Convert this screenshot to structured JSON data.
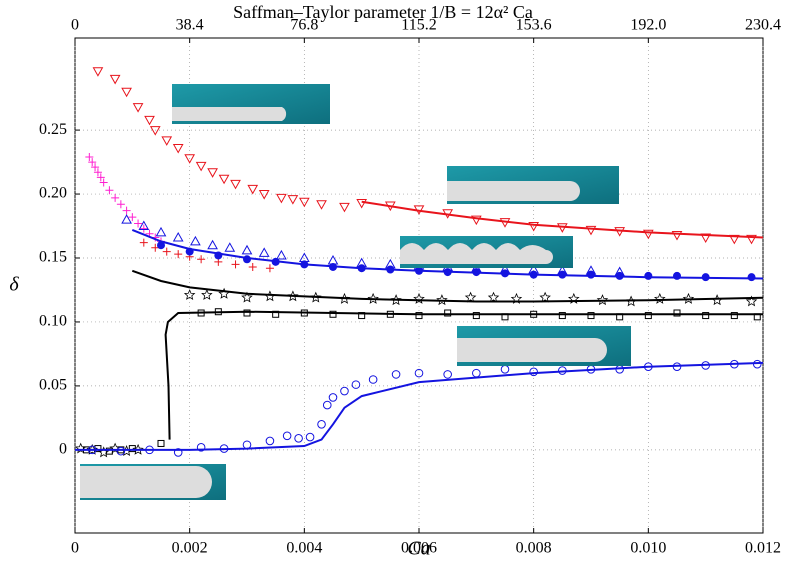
{
  "chart_data": {
    "type": "scatter",
    "title": "Saffman–Taylor parameter 1/B = 12α² Ca",
    "xlabel": "Ca",
    "ylabel": "δ",
    "xlim": [
      0,
      0.012
    ],
    "ylim": [
      -0.065,
      0.322
    ],
    "x2lim": [
      0,
      230.4
    ],
    "xticks": [
      0,
      0.002,
      0.004,
      0.006,
      0.008,
      {
        "value": 0.01,
        "label": "0.010"
      },
      0.012
    ],
    "x2ticks": [
      0,
      38.4,
      76.8,
      115.2,
      153.6,
      {
        "value": 192,
        "label": "192.0"
      },
      230.4
    ],
    "yticks": [
      0,
      0.05,
      {
        "value": 0.1,
        "label": "0.10"
      },
      0.15,
      {
        "value": 0.2,
        "label": "0.20"
      },
      0.25
    ],
    "grid": true,
    "series": [
      {
        "marker": "tri-down",
        "color": "#e8141c",
        "x": [
          0.0004,
          0.0007,
          0.0009,
          0.0011,
          0.0013,
          0.0014,
          0.0016,
          0.0018,
          0.002,
          0.0022,
          0.0024,
          0.0026,
          0.0028,
          0.0031,
          0.0033,
          0.0036,
          0.0038,
          0.004,
          0.0043,
          0.0047,
          0.005,
          0.0055,
          0.006,
          0.0065,
          0.007,
          0.0075,
          0.008,
          0.0085,
          0.009,
          0.0095,
          0.01,
          0.0105,
          0.011,
          0.0115,
          0.0118
        ],
        "values": [
          0.296,
          0.29,
          0.28,
          0.268,
          0.258,
          0.25,
          0.242,
          0.236,
          0.228,
          0.222,
          0.217,
          0.212,
          0.208,
          0.204,
          0.2,
          0.197,
          0.196,
          0.194,
          0.192,
          0.19,
          0.193,
          0.191,
          0.188,
          0.185,
          0.18,
          0.178,
          0.175,
          0.174,
          0.172,
          0.171,
          0.169,
          0.168,
          0.166,
          0.165,
          0.165
        ]
      },
      {
        "marker": "line",
        "color": "#e8141c",
        "x": [
          0.005,
          0.006,
          0.007,
          0.008,
          0.009,
          0.01,
          0.011,
          0.012
        ],
        "values": [
          0.194,
          0.187,
          0.181,
          0.176,
          0.173,
          0.17,
          0.168,
          0.166
        ]
      },
      {
        "marker": "plus",
        "color": "#ff1fd0",
        "x": [
          0.00025,
          0.0003,
          0.00035,
          0.0004,
          0.00045,
          0.0005,
          0.0006,
          0.0007,
          0.0008,
          0.0009,
          0.001,
          0.0011,
          0.0012,
          0.0013,
          0.0014,
          0.0015
        ],
        "values": [
          0.229,
          0.225,
          0.221,
          0.217,
          0.213,
          0.209,
          0.203,
          0.197,
          0.192,
          0.187,
          0.182,
          0.177,
          0.173,
          0.169,
          0.166,
          0.163
        ]
      },
      {
        "marker": "plus",
        "color": "#e8141c",
        "x": [
          0.0012,
          0.0014,
          0.0016,
          0.0018,
          0.002,
          0.0022,
          0.0025,
          0.0028,
          0.0031,
          0.0034
        ],
        "values": [
          0.162,
          0.158,
          0.155,
          0.153,
          0.151,
          0.149,
          0.147,
          0.145,
          0.143,
          0.142
        ]
      },
      {
        "marker": "tri-up",
        "color": "#1414e0",
        "x": [
          0.0009,
          0.0012,
          0.0015,
          0.0018,
          0.0021,
          0.0024,
          0.0027,
          0.003,
          0.0033,
          0.0036,
          0.004,
          0.0045,
          0.005,
          0.0055,
          0.006,
          0.0065,
          0.007,
          0.0075,
          0.008,
          0.0085,
          0.009,
          0.0095
        ],
        "values": [
          0.18,
          0.175,
          0.17,
          0.166,
          0.163,
          0.16,
          0.158,
          0.156,
          0.154,
          0.152,
          0.15,
          0.148,
          0.146,
          0.145,
          0.144,
          0.143,
          0.142,
          0.141,
          0.141,
          0.14,
          0.14,
          0.139
        ]
      },
      {
        "marker": "circle-filled",
        "color": "#1414e0",
        "x": [
          0.0015,
          0.002,
          0.0025,
          0.003,
          0.0035,
          0.004,
          0.0045,
          0.005,
          0.0055,
          0.006,
          0.0065,
          0.007,
          0.0075,
          0.008,
          0.0085,
          0.009,
          0.0095,
          0.01,
          0.0105,
          0.011,
          0.0118
        ],
        "values": [
          0.16,
          0.155,
          0.152,
          0.149,
          0.147,
          0.145,
          0.143,
          0.142,
          0.141,
          0.14,
          0.139,
          0.139,
          0.138,
          0.137,
          0.137,
          0.137,
          0.136,
          0.136,
          0.136,
          0.135,
          0.135
        ]
      },
      {
        "marker": "line",
        "color": "#1414e0",
        "x": [
          0.001,
          0.0015,
          0.002,
          0.003,
          0.004,
          0.005,
          0.006,
          0.008,
          0.01,
          0.012
        ],
        "values": [
          0.172,
          0.163,
          0.157,
          0.15,
          0.145,
          0.142,
          0.14,
          0.137,
          0.135,
          0.134
        ]
      },
      {
        "marker": "star",
        "color": "#000000",
        "x": [
          0.0001,
          0.0003,
          0.0005,
          0.0007,
          0.0009,
          0.0011,
          0.002,
          0.0023,
          0.0026,
          0.003,
          0.0034,
          0.0038,
          0.0042,
          0.0047,
          0.0052,
          0.0056,
          0.006,
          0.0064,
          0.0069,
          0.0073,
          0.0077,
          0.0082,
          0.0087,
          0.0092,
          0.0097,
          0.0102,
          0.0107,
          0.0112,
          0.0118
        ],
        "values": [
          0.001,
          0,
          -0.002,
          0.001,
          -0.001,
          0,
          0.121,
          0.121,
          0.122,
          0.119,
          0.12,
          0.12,
          0.119,
          0.118,
          0.118,
          0.117,
          0.118,
          0.117,
          0.119,
          0.119,
          0.118,
          0.119,
          0.118,
          0.117,
          0.116,
          0.118,
          0.118,
          0.117,
          0.116
        ]
      },
      {
        "marker": "line",
        "color": "#000000",
        "x": [
          0.001,
          0.0015,
          0.002,
          0.003,
          0.004,
          0.005,
          0.006,
          0.007,
          0.008,
          0.01,
          0.012
        ],
        "values": [
          0.14,
          0.132,
          0.127,
          0.122,
          0.12,
          0.118,
          0.117,
          0.116,
          0.116,
          0.117,
          0.119
        ]
      },
      {
        "marker": "square",
        "color": "#000000",
        "x": [
          0.0002,
          0.0004,
          0.0006,
          0.0008,
          0.001,
          0.0015,
          0.0022,
          0.0025,
          0.003,
          0.0035,
          0.004,
          0.0045,
          0.005,
          0.0055,
          0.006,
          0.0065,
          0.007,
          0.0075,
          0.008,
          0.0085,
          0.009,
          0.0095,
          0.01,
          0.0105,
          0.011,
          0.0115,
          0.0119
        ],
        "values": [
          0,
          0.001,
          -0.001,
          0,
          0.001,
          0.005,
          0.107,
          0.108,
          0.107,
          0.106,
          0.107,
          0.106,
          0.105,
          0.106,
          0.105,
          0.107,
          0.105,
          0.104,
          0.106,
          0.105,
          0.105,
          0.104,
          0.105,
          0.107,
          0.105,
          0.105,
          0.104
        ]
      },
      {
        "marker": "line",
        "color": "#000000",
        "x": [
          0.00165,
          0.00163,
          0.00158,
          0.00162,
          0.0018,
          0.003,
          0.006,
          0.009,
          0.012
        ],
        "values": [
          0.008,
          0.05,
          0.09,
          0.1,
          0.107,
          0.108,
          0.106,
          0.106,
          0.106
        ]
      },
      {
        "marker": "circle-open",
        "color": "#1414e0",
        "x": [
          0.0003,
          0.0008,
          0.0013,
          0.0018,
          0.0022,
          0.0026,
          0.003,
          0.0034,
          0.0037,
          0.0039,
          0.0041,
          0.0043,
          0.0044,
          0.0045,
          0.0047,
          0.0049,
          0.0052,
          0.0056,
          0.006,
          0.0065,
          0.007,
          0.0075,
          0.008,
          0.0085,
          0.009,
          0.0095,
          0.01,
          0.0105,
          0.011,
          0.0115,
          0.0119
        ],
        "values": [
          0,
          -0.001,
          0,
          -0.002,
          0.002,
          0.001,
          0.004,
          0.007,
          0.011,
          0.009,
          0.01,
          0.02,
          0.035,
          0.041,
          0.046,
          0.051,
          0.055,
          0.059,
          0.06,
          0.059,
          0.06,
          0.063,
          0.061,
          0.062,
          0.063,
          0.063,
          0.065,
          0.065,
          0.066,
          0.067,
          0.067
        ]
      },
      {
        "marker": "line",
        "color": "#1414e0",
        "x": [
          0,
          0.002,
          0.003,
          0.004,
          0.0043,
          0.0045,
          0.0047,
          0.005,
          0.006,
          0.008,
          0.01,
          0.012
        ],
        "values": [
          0,
          0,
          0.001,
          0.003,
          0.008,
          0.02,
          0.033,
          0.042,
          0.053,
          0.06,
          0.065,
          0.068
        ]
      }
    ]
  }
}
